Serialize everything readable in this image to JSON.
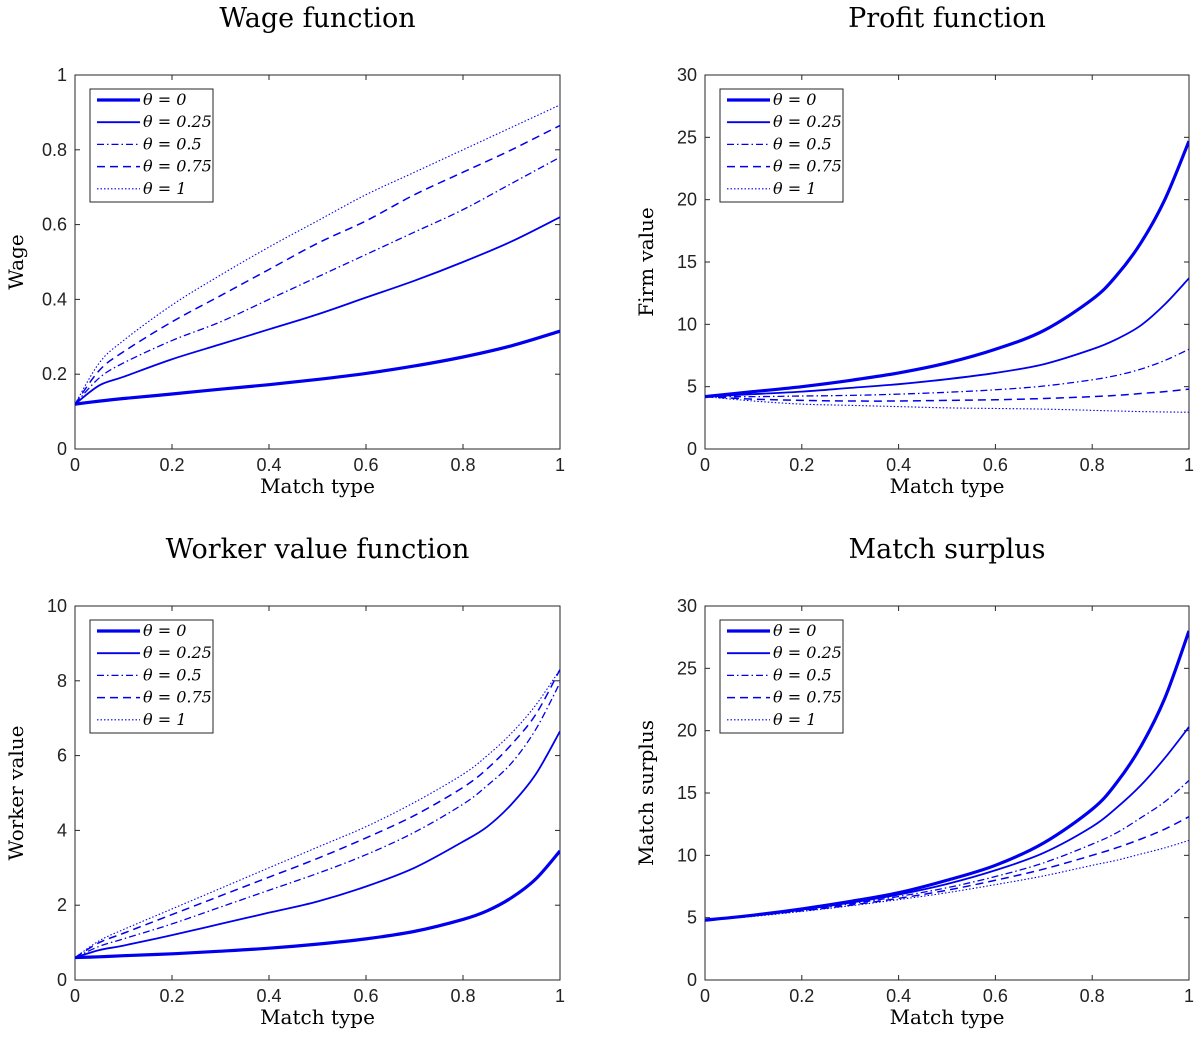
{
  "chart_data": [
    {
      "type": "line",
      "title": "Wage function",
      "xlabel": "Match type",
      "ylabel": "Wage",
      "xlim": [
        0,
        1
      ],
      "ylim": [
        0,
        1
      ],
      "xticks": [
        "0",
        "0.2",
        "0.4",
        "0.6",
        "0.8",
        "1"
      ],
      "yticks": [
        "0",
        "0.2",
        "0.4",
        "0.6",
        "0.8",
        "1"
      ],
      "legend_position": "top-left",
      "x": [
        0,
        0.05,
        0.1,
        0.2,
        0.3,
        0.4,
        0.5,
        0.6,
        0.7,
        0.8,
        0.9,
        1.0
      ],
      "series": [
        {
          "name": "θ = 0",
          "values": [
            0.12,
            0.128,
            0.135,
            0.147,
            0.16,
            0.172,
            0.186,
            0.202,
            0.222,
            0.246,
            0.276,
            0.315
          ]
        },
        {
          "name": "θ = 0.25",
          "values": [
            0.12,
            0.17,
            0.193,
            0.24,
            0.28,
            0.32,
            0.36,
            0.405,
            0.45,
            0.5,
            0.555,
            0.62
          ]
        },
        {
          "name": "θ = 0.5",
          "values": [
            0.12,
            0.19,
            0.23,
            0.29,
            0.34,
            0.4,
            0.46,
            0.52,
            0.58,
            0.64,
            0.71,
            0.78
          ]
        },
        {
          "name": "θ = 0.75",
          "values": [
            0.12,
            0.21,
            0.26,
            0.34,
            0.41,
            0.48,
            0.55,
            0.61,
            0.68,
            0.74,
            0.8,
            0.865
          ]
        },
        {
          "name": "θ = 1",
          "values": [
            0.12,
            0.23,
            0.29,
            0.385,
            0.465,
            0.54,
            0.61,
            0.68,
            0.74,
            0.8,
            0.86,
            0.92
          ]
        }
      ]
    },
    {
      "type": "line",
      "title": "Profit function",
      "xlabel": "Match type",
      "ylabel": "Firm value",
      "xlim": [
        0,
        1
      ],
      "ylim": [
        0,
        30
      ],
      "xticks": [
        "0",
        "0.2",
        "0.4",
        "0.6",
        "0.8",
        "1"
      ],
      "yticks": [
        "0",
        "5",
        "10",
        "15",
        "20",
        "25",
        "30"
      ],
      "legend_position": "top-left",
      "x": [
        0,
        0.1,
        0.2,
        0.3,
        0.4,
        0.5,
        0.6,
        0.7,
        0.8,
        0.85,
        0.9,
        0.95,
        1.0
      ],
      "series": [
        {
          "name": "θ = 0",
          "values": [
            4.2,
            4.6,
            5.0,
            5.5,
            6.1,
            6.9,
            8.0,
            9.5,
            12.0,
            13.9,
            16.5,
            20.0,
            24.7
          ]
        },
        {
          "name": "θ = 0.25",
          "values": [
            4.2,
            4.4,
            4.6,
            4.9,
            5.2,
            5.6,
            6.1,
            6.8,
            8.0,
            8.8,
            9.9,
            11.6,
            13.7
          ]
        },
        {
          "name": "θ = 0.5",
          "values": [
            4.2,
            4.2,
            4.25,
            4.3,
            4.4,
            4.55,
            4.75,
            5.05,
            5.55,
            5.9,
            6.4,
            7.1,
            8.0
          ]
        },
        {
          "name": "θ = 0.75",
          "values": [
            4.2,
            4.0,
            3.9,
            3.85,
            3.85,
            3.9,
            3.95,
            4.05,
            4.2,
            4.3,
            4.45,
            4.6,
            4.8
          ]
        },
        {
          "name": "θ = 1",
          "values": [
            4.2,
            3.85,
            3.6,
            3.5,
            3.4,
            3.3,
            3.25,
            3.2,
            3.1,
            3.05,
            3.0,
            2.97,
            2.95
          ]
        }
      ]
    },
    {
      "type": "line",
      "title": "Worker value function",
      "xlabel": "Match type",
      "ylabel": "Worker value",
      "xlim": [
        0,
        1
      ],
      "ylim": [
        0,
        10
      ],
      "xticks": [
        "0",
        "0.2",
        "0.4",
        "0.6",
        "0.8",
        "1"
      ],
      "yticks": [
        "0",
        "2",
        "4",
        "6",
        "8",
        "10"
      ],
      "legend_position": "top-left",
      "x": [
        0,
        0.05,
        0.1,
        0.2,
        0.3,
        0.4,
        0.5,
        0.6,
        0.7,
        0.8,
        0.85,
        0.9,
        0.95,
        1.0
      ],
      "series": [
        {
          "name": "θ = 0",
          "values": [
            0.6,
            0.62,
            0.65,
            0.7,
            0.77,
            0.85,
            0.96,
            1.1,
            1.3,
            1.62,
            1.85,
            2.2,
            2.7,
            3.45
          ]
        },
        {
          "name": "θ = 0.25",
          "values": [
            0.6,
            0.8,
            0.92,
            1.2,
            1.5,
            1.8,
            2.1,
            2.5,
            3.0,
            3.7,
            4.1,
            4.7,
            5.5,
            6.65
          ]
        },
        {
          "name": "θ = 0.5",
          "values": [
            0.6,
            0.9,
            1.1,
            1.5,
            1.95,
            2.4,
            2.85,
            3.35,
            3.95,
            4.7,
            5.2,
            5.8,
            6.7,
            7.95
          ]
        },
        {
          "name": "θ = 0.75",
          "values": [
            0.6,
            1.0,
            1.25,
            1.75,
            2.25,
            2.75,
            3.25,
            3.8,
            4.4,
            5.15,
            5.65,
            6.3,
            7.1,
            8.3
          ]
        },
        {
          "name": "θ = 1",
          "values": [
            0.6,
            1.05,
            1.35,
            1.9,
            2.45,
            3.0,
            3.55,
            4.1,
            4.75,
            5.5,
            6.0,
            6.6,
            7.35,
            8.3
          ]
        }
      ]
    },
    {
      "type": "line",
      "title": "Match surplus",
      "xlabel": "Match type",
      "ylabel": "Match surplus",
      "xlim": [
        0,
        1
      ],
      "ylim": [
        0,
        30
      ],
      "xticks": [
        "0",
        "0.2",
        "0.4",
        "0.6",
        "0.8",
        "1"
      ],
      "yticks": [
        "0",
        "5",
        "10",
        "15",
        "20",
        "25",
        "30"
      ],
      "legend_position": "top-left",
      "x": [
        0,
        0.1,
        0.2,
        0.3,
        0.4,
        0.5,
        0.6,
        0.7,
        0.8,
        0.85,
        0.9,
        0.95,
        1.0
      ],
      "series": [
        {
          "name": "θ = 0",
          "values": [
            4.8,
            5.2,
            5.7,
            6.3,
            7.0,
            8.0,
            9.2,
            11.0,
            13.7,
            15.8,
            18.7,
            22.6,
            28.0
          ]
        },
        {
          "name": "θ = 0.25",
          "values": [
            4.8,
            5.2,
            5.65,
            6.2,
            6.85,
            7.7,
            8.8,
            10.2,
            12.3,
            13.8,
            15.6,
            17.8,
            20.3
          ]
        },
        {
          "name": "θ = 0.5",
          "values": [
            4.8,
            5.15,
            5.6,
            6.1,
            6.7,
            7.4,
            8.3,
            9.4,
            10.9,
            11.8,
            13.0,
            14.3,
            16.0
          ]
        },
        {
          "name": "θ = 0.75",
          "values": [
            4.8,
            5.15,
            5.55,
            6.0,
            6.55,
            7.2,
            8.0,
            8.9,
            10.0,
            10.6,
            11.3,
            12.1,
            13.1
          ]
        },
        {
          "name": "θ = 1",
          "values": [
            4.8,
            5.1,
            5.5,
            5.95,
            6.45,
            7.0,
            7.65,
            8.35,
            9.2,
            9.6,
            10.1,
            10.6,
            11.2
          ]
        }
      ]
    }
  ]
}
